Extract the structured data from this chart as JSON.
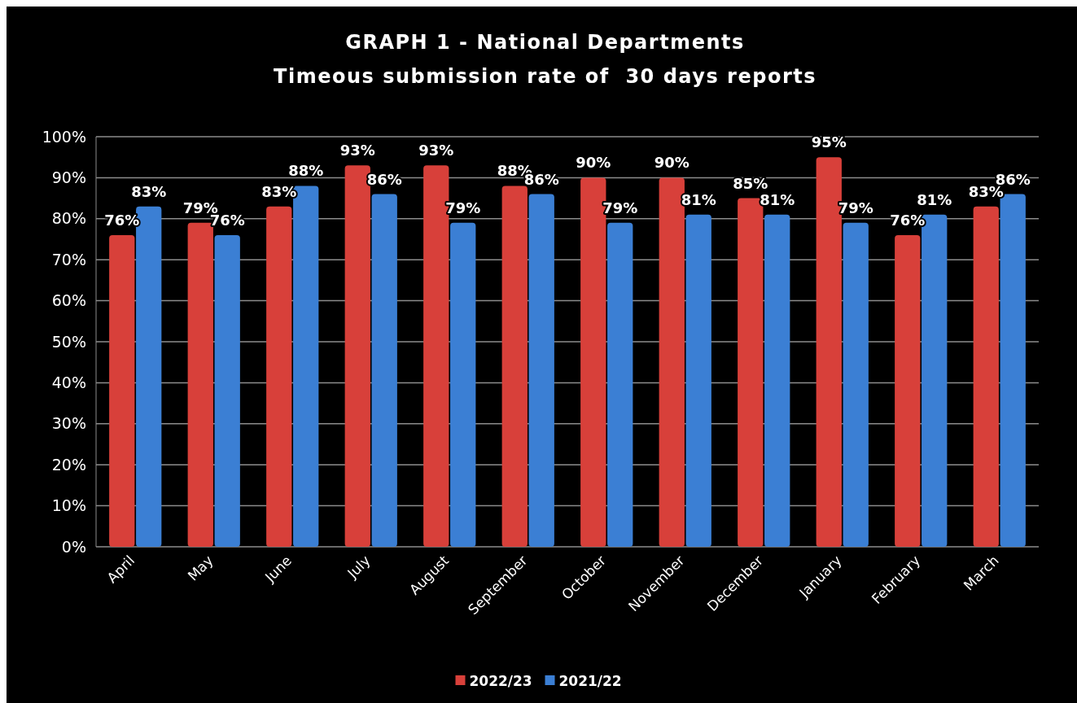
{
  "chart_data": {
    "type": "bar",
    "title": "GRAPH 1 - National Departments",
    "subtitle": "Timeous submission rate of  30 days reports",
    "categories": [
      "April",
      "May",
      "June",
      "July",
      "August",
      "September",
      "October",
      "November",
      "December",
      "January",
      "February",
      "March"
    ],
    "series": [
      {
        "name": "2022/23",
        "color": "#d8403a",
        "values": [
          76,
          79,
          83,
          93,
          93,
          88,
          90,
          90,
          85,
          95,
          76,
          83
        ],
        "value_labels": [
          "76%",
          "79%",
          "83%",
          "93%",
          "93%",
          "88%",
          "90%",
          "90%",
          "85%",
          "95%",
          "76%",
          "83%"
        ]
      },
      {
        "name": "2021/22",
        "color": "#3b7fd4",
        "values": [
          83,
          76,
          88,
          86,
          79,
          86,
          79,
          81,
          81,
          79,
          81,
          86
        ],
        "value_labels": [
          "83%",
          "76%",
          "88%",
          "86%",
          "79%",
          "86%",
          "79%",
          "81%",
          "81%",
          "79%",
          "81%",
          "86%"
        ]
      }
    ],
    "ylim": [
      0,
      100
    ],
    "yticks": [
      {
        "value": 0,
        "label": "0%"
      },
      {
        "value": 10,
        "label": "10%"
      },
      {
        "value": 20,
        "label": "20%"
      },
      {
        "value": 30,
        "label": "30%"
      },
      {
        "value": 40,
        "label": "40%"
      },
      {
        "value": 50,
        "label": "50%"
      },
      {
        "value": 60,
        "label": "60%"
      },
      {
        "value": 70,
        "label": "70%"
      },
      {
        "value": 80,
        "label": "80%"
      },
      {
        "value": 90,
        "label": "90%"
      },
      {
        "value": 100,
        "label": "100%"
      }
    ],
    "grid": "y",
    "legend": "bottom"
  }
}
